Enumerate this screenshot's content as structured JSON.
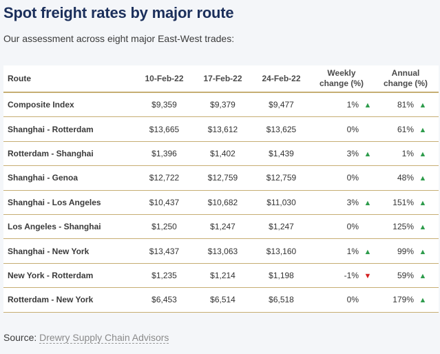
{
  "title": "Spot freight rates by major route",
  "subtitle": "Our assessment across eight major East-West trades:",
  "table": {
    "headers": {
      "route": "Route",
      "d1": "10-Feb-22",
      "d2": "17-Feb-22",
      "d3": "24-Feb-22",
      "weekly_l1": "Weekly",
      "weekly_l2": "change (%)",
      "annual_l1": "Annual",
      "annual_l2": "change (%)"
    },
    "rows": [
      {
        "route": "Composite Index",
        "d1": "$9,359",
        "d2": "$9,379",
        "d3": "$9,477",
        "weekly": "1%",
        "weekly_dir": "up",
        "annual": "81%",
        "annual_dir": "up"
      },
      {
        "route": "Shanghai - Rotterdam",
        "d1": "$13,665",
        "d2": "$13,612",
        "d3": "$13,625",
        "weekly": "0%",
        "weekly_dir": "none",
        "annual": "61%",
        "annual_dir": "up"
      },
      {
        "route": "Rotterdam - Shanghai",
        "d1": "$1,396",
        "d2": "$1,402",
        "d3": "$1,439",
        "weekly": "3%",
        "weekly_dir": "up",
        "annual": "1%",
        "annual_dir": "up"
      },
      {
        "route": "Shanghai - Genoa",
        "d1": "$12,722",
        "d2": "$12,759",
        "d3": "$12,759",
        "weekly": "0%",
        "weekly_dir": "none",
        "annual": "48%",
        "annual_dir": "up"
      },
      {
        "route": "Shanghai - Los Angeles",
        "d1": "$10,437",
        "d2": "$10,682",
        "d3": "$11,030",
        "weekly": "3%",
        "weekly_dir": "up",
        "annual": "151%",
        "annual_dir": "up"
      },
      {
        "route": "Los Angeles - Shanghai",
        "d1": "$1,250",
        "d2": "$1,247",
        "d3": "$1,247",
        "weekly": "0%",
        "weekly_dir": "none",
        "annual": "125%",
        "annual_dir": "up"
      },
      {
        "route": "Shanghai - New York",
        "d1": "$13,437",
        "d2": "$13,063",
        "d3": "$13,160",
        "weekly": "1%",
        "weekly_dir": "up",
        "annual": "99%",
        "annual_dir": "up"
      },
      {
        "route": "New York - Rotterdam",
        "d1": "$1,235",
        "d2": "$1,214",
        "d3": "$1,198",
        "weekly": "-1%",
        "weekly_dir": "down",
        "annual": "59%",
        "annual_dir": "up"
      },
      {
        "route": "Rotterdam - New York",
        "d1": "$6,453",
        "d2": "$6,514",
        "d3": "$6,518",
        "weekly": "0%",
        "weekly_dir": "none",
        "annual": "179%",
        "annual_dir": "up"
      }
    ]
  },
  "source": {
    "label": "Source:",
    "link_text": "Drewry Supply Chain Advisors"
  },
  "colors": {
    "title": "#1b2f5b",
    "up": "#2e9c4c",
    "down": "#d32020",
    "rule": "#c6ad72"
  }
}
